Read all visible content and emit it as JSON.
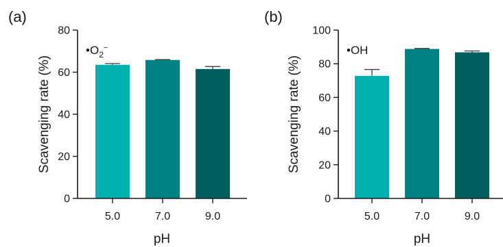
{
  "chart_data": [
    {
      "type": "bar",
      "panel_label": "(a)",
      "annotation": {
        "bullet": "•",
        "base": "O",
        "sub": "2",
        "sup": "−"
      },
      "ylabel": "Scavenging rate (%)",
      "xlabel": "pH",
      "categories": [
        "5.0",
        "7.0",
        "9.0"
      ],
      "values": [
        63.5,
        65.8,
        61.5
      ],
      "errors": [
        0.6,
        0.2,
        1.2
      ],
      "colors": [
        "#00afaf",
        "#008080",
        "#006060"
      ],
      "ylim": [
        0,
        80
      ],
      "yticks": [
        0,
        20,
        40,
        60,
        80
      ],
      "ytick_labels": [
        "0",
        "20",
        "40",
        "60",
        "80"
      ],
      "grid": false
    },
    {
      "type": "bar",
      "panel_label": "(b)",
      "annotation": {
        "bullet": "•",
        "base": "OH",
        "sub": "",
        "sup": ""
      },
      "ylabel": "Scavenging rate (%)",
      "xlabel": "pH",
      "categories": [
        "5.0",
        "7.0",
        "9.0"
      ],
      "values": [
        72.8,
        88.8,
        86.8
      ],
      "errors": [
        3.8,
        0.3,
        0.8
      ],
      "colors": [
        "#00afaf",
        "#008080",
        "#006060"
      ],
      "ylim": [
        0,
        100
      ],
      "yticks": [
        0,
        20,
        40,
        60,
        80,
        100
      ],
      "ytick_labels": [
        "0",
        "20",
        "40",
        "60",
        "80",
        "100"
      ],
      "grid": false
    }
  ]
}
